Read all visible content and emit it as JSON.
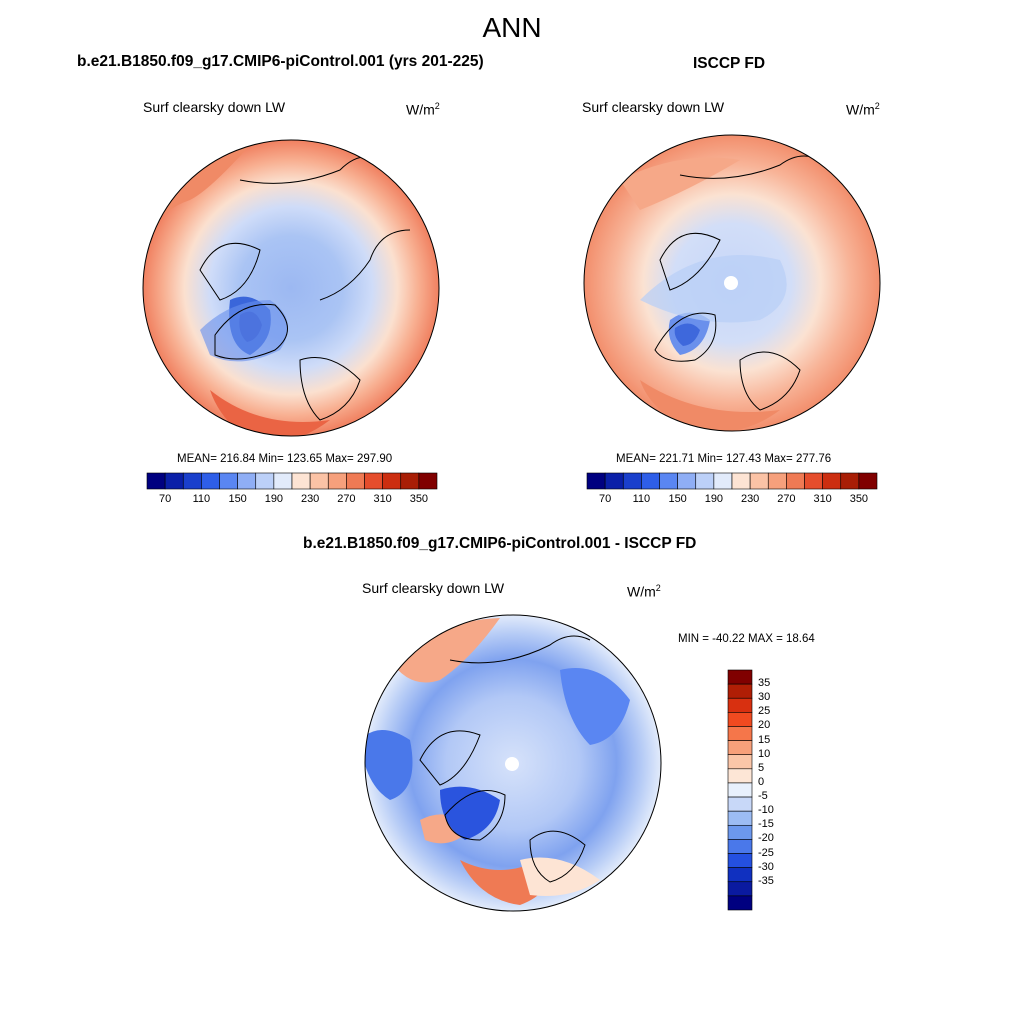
{
  "main_title": "ANN",
  "panels": [
    {
      "title": "b.e21.B1850.f09_g17.CMIP6-piControl.001 (yrs 201-225)",
      "variable": "Surf clearsky down LW",
      "units_base": "W/m",
      "units_exp": "2",
      "stats": "MEAN= 216.84  Min= 123.65  Max= 297.90"
    },
    {
      "title": "ISCCP FD",
      "variable": "Surf clearsky down LW",
      "units_base": "W/m",
      "units_exp": "2",
      "stats": "MEAN= 221.71  Min= 127.43  Max= 277.76"
    },
    {
      "title": "b.e21.B1850.f09_g17.CMIP6-piControl.001 - ISCCP FD",
      "variable": "Surf clearsky down LW",
      "units_base": "W/m",
      "units_exp": "2",
      "stats": "MIN = -40.22 MAX =  18.64"
    }
  ],
  "abs_colorbar": {
    "tick_labels": [
      "70",
      "110",
      "150",
      "190",
      "230",
      "270",
      "310",
      "350"
    ],
    "colors": [
      "#000080",
      "#0a1fa8",
      "#1a3fcc",
      "#2e5ee8",
      "#5a86f2",
      "#8faef5",
      "#bcd0f8",
      "#e2ebfb",
      "#fde4d4",
      "#fbc3a6",
      "#f6a07c",
      "#ef7a54",
      "#e54d2c",
      "#cc2e10",
      "#a81e06",
      "#800000"
    ]
  },
  "diff_colorbar": {
    "tick_labels": [
      "35",
      "30",
      "25",
      "20",
      "15",
      "10",
      "5",
      "0",
      "-5",
      "-10",
      "-15",
      "-20",
      "-25",
      "-30",
      "-35"
    ],
    "colors": [
      "#800000",
      "#b01e05",
      "#d83010",
      "#f04a20",
      "#f5764a",
      "#f8a07a",
      "#fbc6a8",
      "#fde6d6",
      "#e8f0fc",
      "#c8d8f8",
      "#9cbcf4",
      "#6c98ee",
      "#4a78ea",
      "#2450e0",
      "#1030c0",
      "#0a1aa0",
      "#000080"
    ]
  }
}
